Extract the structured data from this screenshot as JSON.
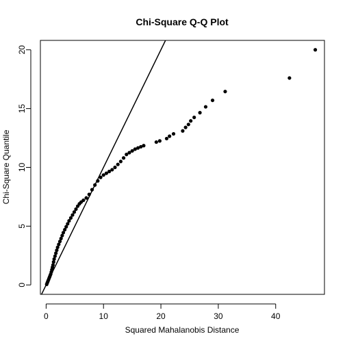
{
  "chart_data": {
    "type": "scatter",
    "title": "Chi-Square Q-Q Plot",
    "xlabel": "Squared Mahalanobis Distance",
    "ylabel": "Chi-Square Quantile",
    "xlim": [
      -1.0,
      48.5
    ],
    "ylim": [
      -0.8,
      20.8
    ],
    "xticks": [
      0,
      10,
      20,
      30,
      40
    ],
    "yticks": [
      0,
      5,
      10,
      15,
      20
    ],
    "reference_line": {
      "slope": 1,
      "intercept": 0
    },
    "points": [
      [
        0.1,
        0.05
      ],
      [
        0.2,
        0.18
      ],
      [
        0.3,
        0.3
      ],
      [
        0.4,
        0.42
      ],
      [
        0.5,
        0.55
      ],
      [
        0.6,
        0.67
      ],
      [
        0.7,
        0.8
      ],
      [
        0.8,
        0.92
      ],
      [
        0.9,
        1.1
      ],
      [
        1.0,
        1.3
      ],
      [
        1.1,
        1.5
      ],
      [
        1.2,
        1.7
      ],
      [
        1.3,
        1.95
      ],
      [
        1.4,
        2.2
      ],
      [
        1.55,
        2.45
      ],
      [
        1.7,
        2.7
      ],
      [
        1.85,
        2.95
      ],
      [
        2.0,
        3.2
      ],
      [
        2.2,
        3.45
      ],
      [
        2.4,
        3.7
      ],
      [
        2.6,
        3.95
      ],
      [
        2.8,
        4.2
      ],
      [
        3.0,
        4.45
      ],
      [
        3.25,
        4.7
      ],
      [
        3.5,
        4.95
      ],
      [
        3.75,
        5.2
      ],
      [
        4.0,
        5.45
      ],
      [
        4.3,
        5.7
      ],
      [
        4.6,
        5.95
      ],
      [
        4.9,
        6.2
      ],
      [
        5.2,
        6.45
      ],
      [
        5.5,
        6.7
      ],
      [
        5.8,
        6.9
      ],
      [
        6.1,
        7.05
      ],
      [
        6.5,
        7.2
      ],
      [
        7.0,
        7.4
      ],
      [
        7.5,
        7.7
      ],
      [
        8.0,
        8.1
      ],
      [
        8.5,
        8.5
      ],
      [
        9.0,
        8.85
      ],
      [
        9.5,
        9.15
      ],
      [
        10.0,
        9.35
      ],
      [
        10.5,
        9.5
      ],
      [
        11.0,
        9.65
      ],
      [
        11.5,
        9.8
      ],
      [
        12.0,
        10.0
      ],
      [
        12.5,
        10.25
      ],
      [
        13.0,
        10.5
      ],
      [
        13.5,
        10.8
      ],
      [
        14.0,
        11.1
      ],
      [
        14.5,
        11.25
      ],
      [
        15.0,
        11.4
      ],
      [
        15.5,
        11.55
      ],
      [
        16.0,
        11.65
      ],
      [
        16.5,
        11.75
      ],
      [
        17.0,
        11.85
      ],
      [
        19.2,
        12.15
      ],
      [
        19.8,
        12.25
      ],
      [
        21.0,
        12.45
      ],
      [
        21.5,
        12.65
      ],
      [
        22.2,
        12.85
      ],
      [
        23.8,
        13.1
      ],
      [
        24.3,
        13.4
      ],
      [
        24.8,
        13.65
      ],
      [
        25.2,
        13.95
      ],
      [
        25.8,
        14.25
      ],
      [
        26.8,
        14.65
      ],
      [
        27.8,
        15.15
      ],
      [
        29.0,
        15.7
      ],
      [
        31.2,
        16.45
      ],
      [
        42.4,
        17.6
      ],
      [
        46.9,
        20.0
      ]
    ],
    "grid": false,
    "legend": "none"
  },
  "colors": {
    "points": "#000000",
    "line": "#000000",
    "axes": "#000000",
    "background": "#ffffff"
  }
}
